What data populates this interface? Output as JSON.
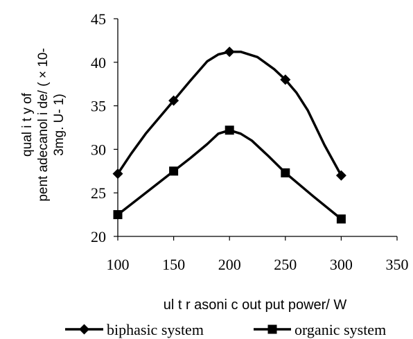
{
  "chart_data": {
    "type": "line",
    "xlabel": "ul t r asoni c out put power/ W",
    "ylabel_lines": [
      "qual i t y of",
      "pent adecanol i de/ ( × 10-",
      "3mg. U- 1)"
    ],
    "xlim": [
      100,
      350
    ],
    "ylim": [
      20,
      45
    ],
    "xticks": [
      100,
      150,
      200,
      250,
      300,
      350
    ],
    "yticks": [
      20,
      25,
      30,
      35,
      40,
      45
    ],
    "grid": false,
    "legend_position": "bottom",
    "series": [
      {
        "name": "biphasic system",
        "marker": "diamond",
        "color": "#000000",
        "points": [
          {
            "x": 100,
            "y": 27.2,
            "marker": true
          },
          {
            "x": 112,
            "y": 29.5,
            "marker": false
          },
          {
            "x": 125,
            "y": 31.8,
            "marker": false
          },
          {
            "x": 150,
            "y": 35.6,
            "marker": true
          },
          {
            "x": 165,
            "y": 37.9,
            "marker": false
          },
          {
            "x": 180,
            "y": 40.1,
            "marker": false
          },
          {
            "x": 190,
            "y": 40.9,
            "marker": false
          },
          {
            "x": 200,
            "y": 41.2,
            "marker": true
          },
          {
            "x": 210,
            "y": 41.2,
            "marker": false
          },
          {
            "x": 225,
            "y": 40.6,
            "marker": false
          },
          {
            "x": 240,
            "y": 39.2,
            "marker": false
          },
          {
            "x": 250,
            "y": 38.0,
            "marker": true
          },
          {
            "x": 260,
            "y": 36.5,
            "marker": false
          },
          {
            "x": 270,
            "y": 34.5,
            "marker": false
          },
          {
            "x": 285,
            "y": 30.5,
            "marker": false
          },
          {
            "x": 300,
            "y": 27.0,
            "marker": true
          }
        ]
      },
      {
        "name": "organic system",
        "marker": "square",
        "color": "#000000",
        "points": [
          {
            "x": 100,
            "y": 22.5,
            "marker": true
          },
          {
            "x": 125,
            "y": 25.0,
            "marker": false
          },
          {
            "x": 150,
            "y": 27.5,
            "marker": true
          },
          {
            "x": 165,
            "y": 29.0,
            "marker": false
          },
          {
            "x": 180,
            "y": 30.6,
            "marker": false
          },
          {
            "x": 190,
            "y": 31.8,
            "marker": false
          },
          {
            "x": 200,
            "y": 32.2,
            "marker": true
          },
          {
            "x": 210,
            "y": 31.8,
            "marker": false
          },
          {
            "x": 220,
            "y": 31.0,
            "marker": false
          },
          {
            "x": 235,
            "y": 29.2,
            "marker": false
          },
          {
            "x": 250,
            "y": 27.3,
            "marker": true
          },
          {
            "x": 275,
            "y": 24.6,
            "marker": false
          },
          {
            "x": 300,
            "y": 22.0,
            "marker": true
          }
        ]
      }
    ]
  }
}
